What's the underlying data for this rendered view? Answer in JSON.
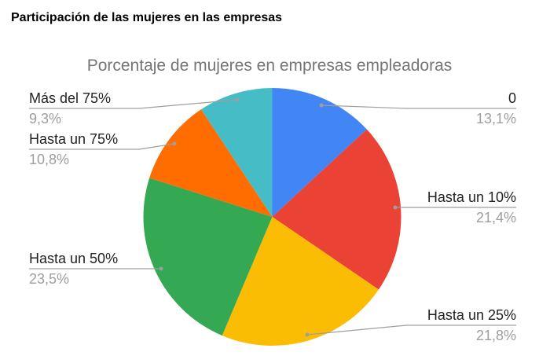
{
  "page": {
    "heading": "Participación de las mujeres en las empresas"
  },
  "chart_data": {
    "type": "pie",
    "title": "Porcentaje de mujeres en empresas empleadoras",
    "categories": [
      "0",
      "Hasta un 10%",
      "Hasta un 25%",
      "Hasta un 50%",
      "Hasta un 75%",
      "Más del 75%"
    ],
    "values": [
      13.1,
      21.4,
      21.8,
      23.5,
      10.8,
      9.3
    ],
    "value_labels": [
      "13,1%",
      "21,4%",
      "21,8%",
      "23,5%",
      "10,8%",
      "9,3%"
    ],
    "colors": [
      "#4285F4",
      "#EA4335",
      "#FBBC04",
      "#34A853",
      "#FF6D01",
      "#46BDC6"
    ],
    "start_angle": "12 o'clock, clockwise",
    "legend_position": "labeled slices with leader lines"
  },
  "labels": {
    "s0": {
      "name": "0",
      "pct": "13,1%"
    },
    "s1": {
      "name": "Hasta un 10%",
      "pct": "21,4%"
    },
    "s2": {
      "name": "Hasta un 25%",
      "pct": "21,8%"
    },
    "s3": {
      "name": "Hasta un 50%",
      "pct": "23,5%"
    },
    "s4": {
      "name": "Hasta un 75%",
      "pct": "10,8%"
    },
    "s5": {
      "name": "Más del 75%",
      "pct": "9,3%"
    }
  }
}
